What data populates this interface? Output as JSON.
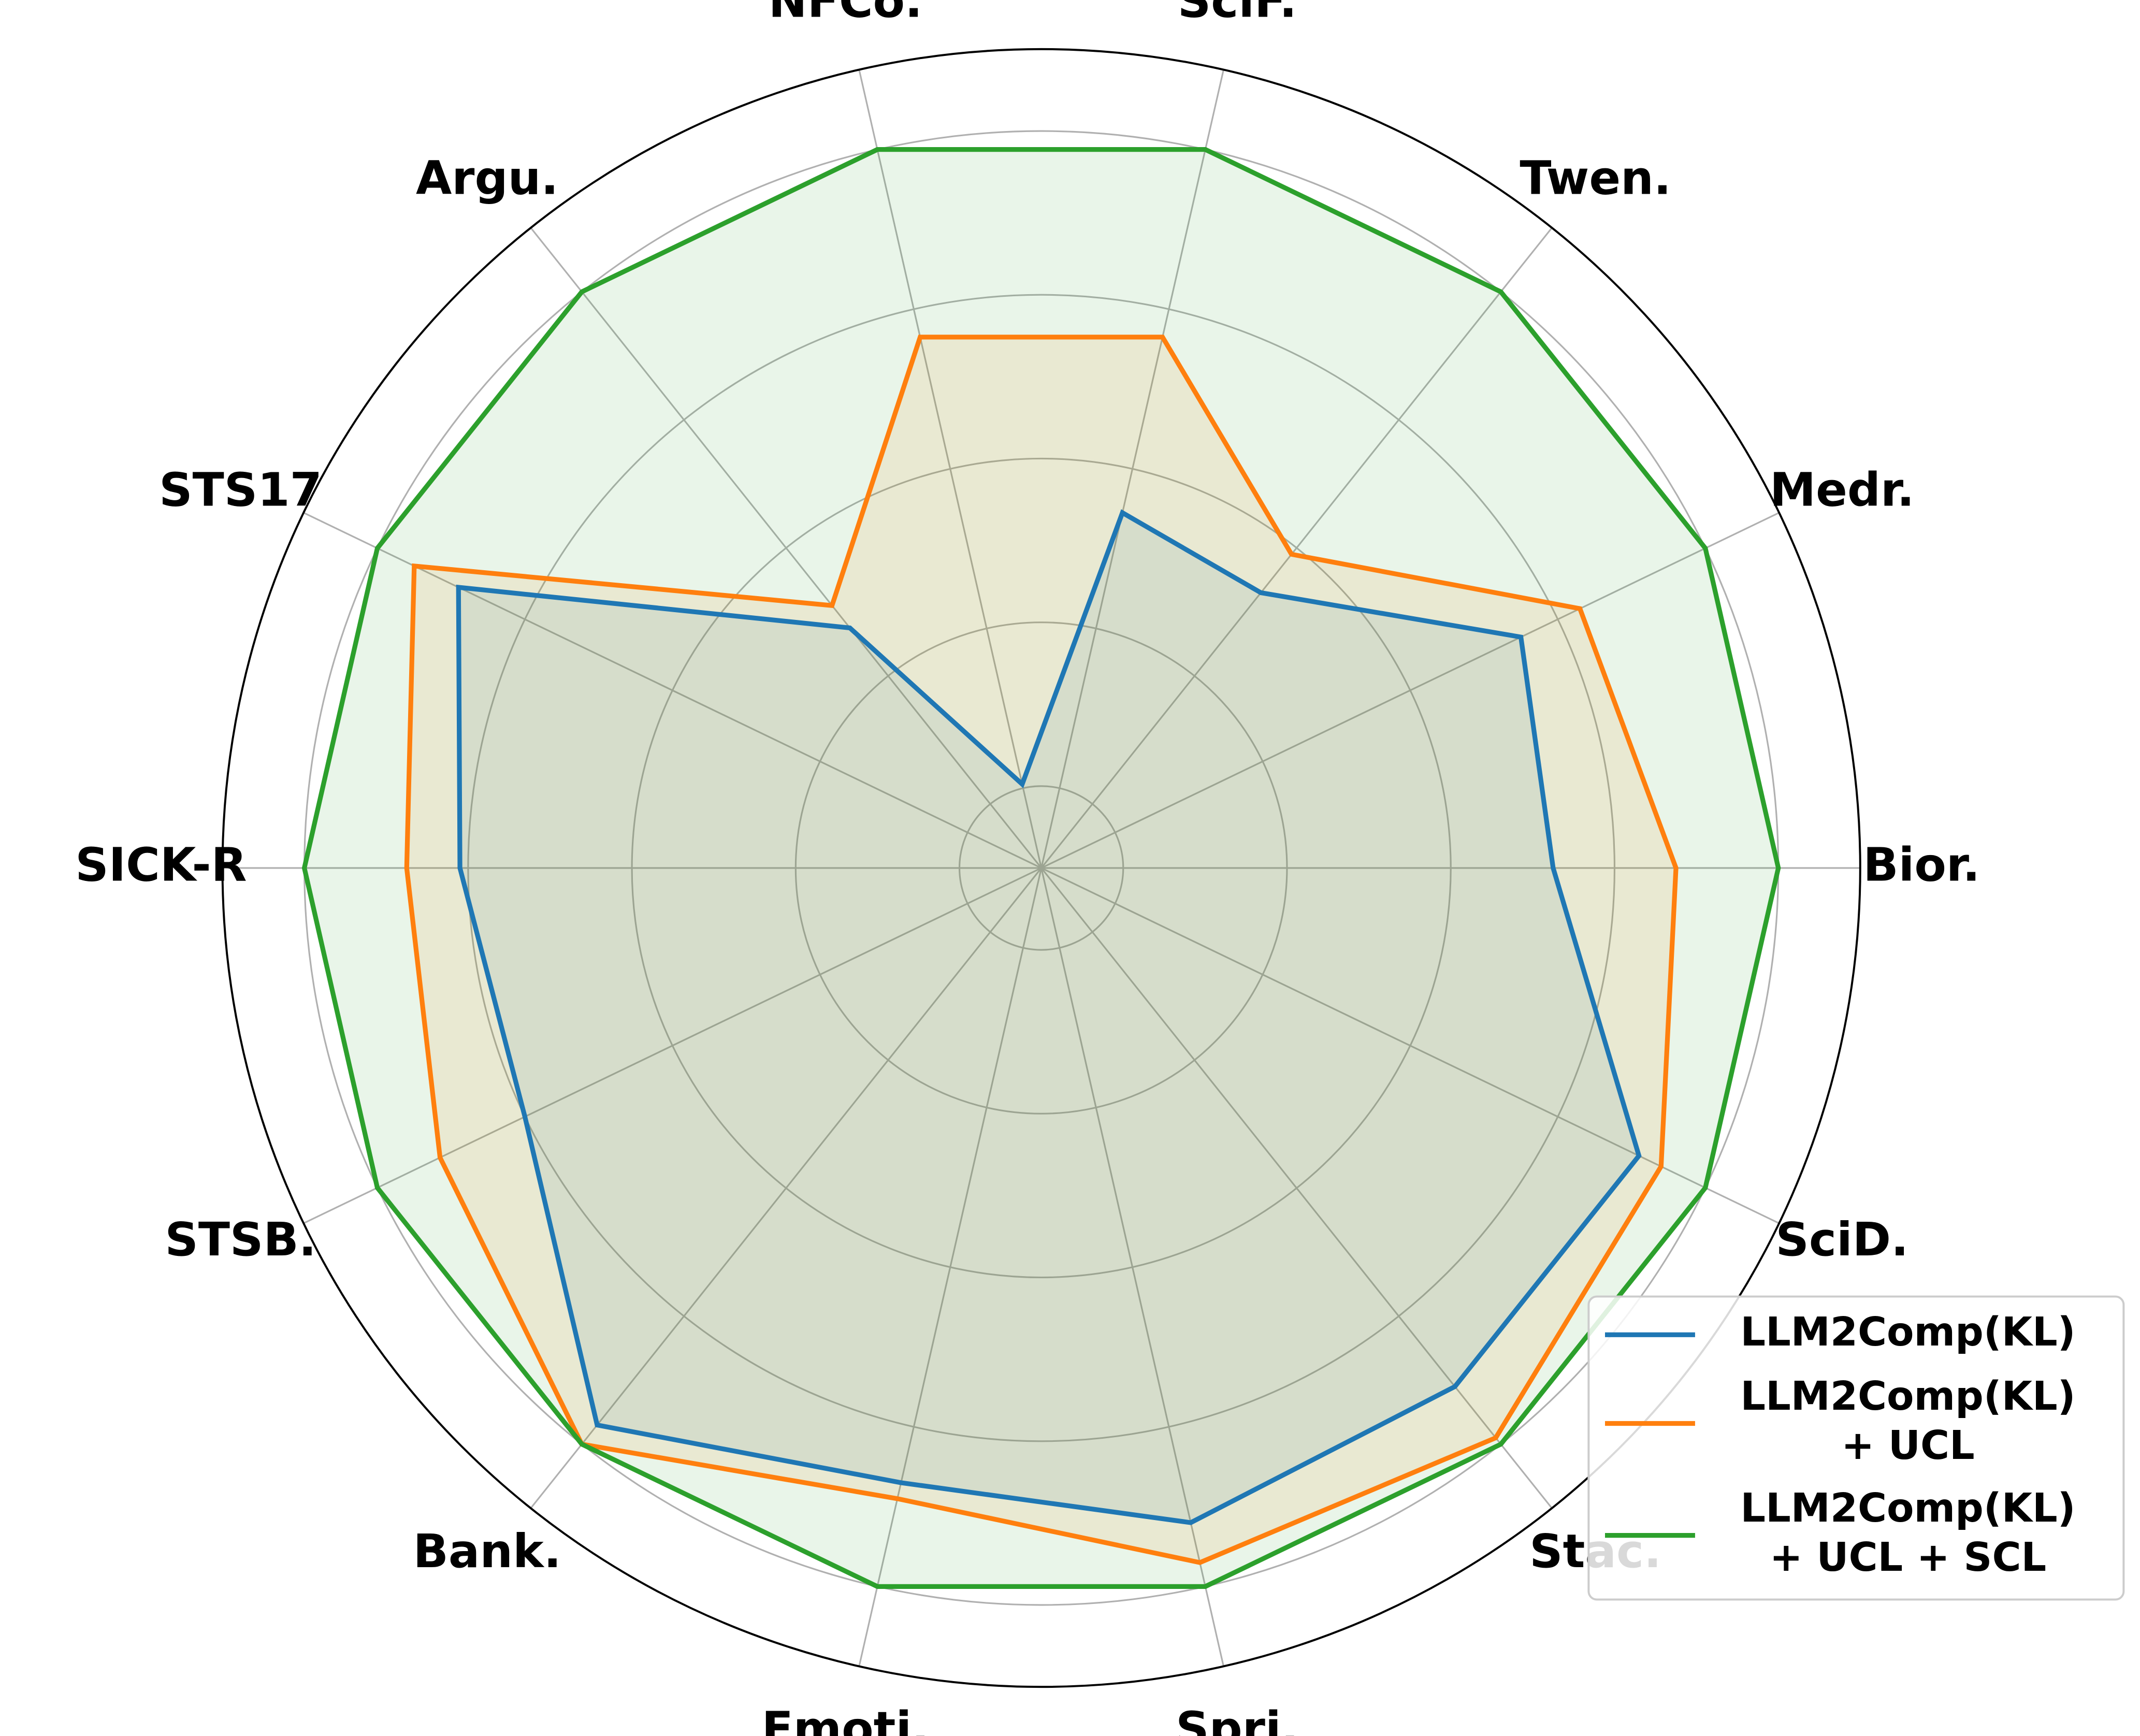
{
  "chart_data": {
    "type": "radar",
    "categories": [
      "Bior.",
      "Medr.",
      "Twen.",
      "SciF.",
      "NFCo.",
      "Argu.",
      "STS17",
      "SICK-R",
      "STSB.",
      "Bank.",
      "Emoti.",
      "Spri.",
      "Stac.",
      "SciD."
    ],
    "ylim": [
      0,
      1
    ],
    "yticks": [
      0.1,
      0.3,
      0.5,
      0.7,
      0.9
    ],
    "grid": true,
    "legend": "lower right",
    "series": [
      {
        "name": "LLM2Comp(KL)",
        "color": "#1f77b4",
        "values": [
          0.625,
          0.65,
          0.43,
          0.445,
          0.105,
          0.375,
          0.79,
          0.71,
          0.7,
          0.87,
          0.77,
          0.82,
          0.81,
          0.81
        ]
      },
      {
        "name": "LLM2Comp(KL)\n+ UCL",
        "color": "#ff7f0e",
        "values": [
          0.775,
          0.73,
          0.49,
          0.665,
          0.665,
          0.41,
          0.85,
          0.775,
          0.815,
          0.9,
          0.79,
          0.87,
          0.89,
          0.84
        ]
      },
      {
        "name": "LLM2Comp(KL)\n+ UCL + SCL",
        "color": "#2ca02c",
        "values": [
          0.9,
          0.9,
          0.9,
          0.9,
          0.9,
          0.9,
          0.9,
          0.9,
          0.9,
          0.9,
          0.9,
          0.9,
          0.9,
          0.9
        ]
      }
    ]
  }
}
